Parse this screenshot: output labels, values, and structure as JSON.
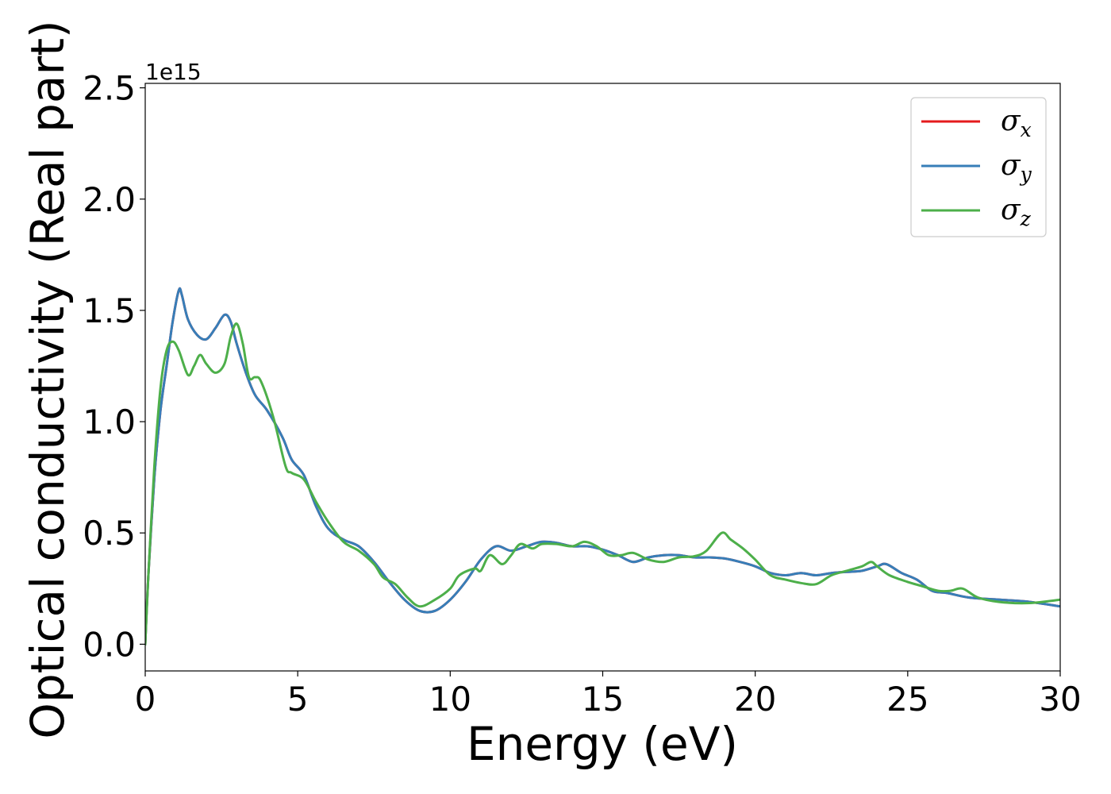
{
  "chart_data": {
    "type": "line",
    "xlabel": "Energy (eV)",
    "ylabel": "Optical conductivity (Real part)",
    "y_offset_label": "1e15",
    "xlim": [
      0,
      30
    ],
    "ylim": [
      -0.12,
      2.52
    ],
    "x_ticks": [
      0,
      5,
      10,
      15,
      20,
      25,
      30
    ],
    "x_tick_labels": [
      "0",
      "5",
      "10",
      "15",
      "20",
      "25",
      "30"
    ],
    "y_ticks": [
      0.0,
      0.5,
      1.0,
      1.5,
      2.0,
      2.5
    ],
    "y_tick_labels": [
      "0.0",
      "0.5",
      "1.0",
      "1.5",
      "2.0",
      "2.5"
    ],
    "grid": false,
    "legend_position": "top-right",
    "series": [
      {
        "name": "σ",
        "subscript": "x",
        "color": "#e41a1c",
        "points": [
          [
            0,
            0
          ],
          [
            0.1,
            0.3
          ],
          [
            0.3,
            0.75
          ],
          [
            0.5,
            1.05
          ],
          [
            0.7,
            1.25
          ],
          [
            0.9,
            1.45
          ],
          [
            1.1,
            1.59
          ],
          [
            1.2,
            1.57
          ],
          [
            1.4,
            1.46
          ],
          [
            1.7,
            1.39
          ],
          [
            2.0,
            1.37
          ],
          [
            2.3,
            1.42
          ],
          [
            2.6,
            1.48
          ],
          [
            2.8,
            1.45
          ],
          [
            3.0,
            1.35
          ],
          [
            3.3,
            1.22
          ],
          [
            3.6,
            1.12
          ],
          [
            4.0,
            1.05
          ],
          [
            4.5,
            0.93
          ],
          [
            4.8,
            0.83
          ],
          [
            5.2,
            0.76
          ],
          [
            5.6,
            0.62
          ],
          [
            6.0,
            0.52
          ],
          [
            6.5,
            0.47
          ],
          [
            7.0,
            0.44
          ],
          [
            7.5,
            0.37
          ],
          [
            8.0,
            0.28
          ],
          [
            8.5,
            0.2
          ],
          [
            9.0,
            0.15
          ],
          [
            9.5,
            0.15
          ],
          [
            10.0,
            0.2
          ],
          [
            10.5,
            0.28
          ],
          [
            11.0,
            0.38
          ],
          [
            11.5,
            0.44
          ],
          [
            12.0,
            0.42
          ],
          [
            12.5,
            0.44
          ],
          [
            13.0,
            0.46
          ],
          [
            13.5,
            0.455
          ],
          [
            14.0,
            0.44
          ],
          [
            14.5,
            0.44
          ],
          [
            15.0,
            0.425
          ],
          [
            15.5,
            0.4
          ],
          [
            16.0,
            0.37
          ],
          [
            16.5,
            0.39
          ],
          [
            17.0,
            0.4
          ],
          [
            17.5,
            0.4
          ],
          [
            18.0,
            0.39
          ],
          [
            18.5,
            0.39
          ],
          [
            19.0,
            0.385
          ],
          [
            19.5,
            0.37
          ],
          [
            20.0,
            0.35
          ],
          [
            20.5,
            0.32
          ],
          [
            21.0,
            0.31
          ],
          [
            21.5,
            0.32
          ],
          [
            22.0,
            0.31
          ],
          [
            22.5,
            0.32
          ],
          [
            23.0,
            0.325
          ],
          [
            23.5,
            0.33
          ],
          [
            24.0,
            0.35
          ],
          [
            24.3,
            0.36
          ],
          [
            24.8,
            0.32
          ],
          [
            25.3,
            0.29
          ],
          [
            25.8,
            0.24
          ],
          [
            26.3,
            0.23
          ],
          [
            27.0,
            0.21
          ],
          [
            28.0,
            0.2
          ],
          [
            29.0,
            0.19
          ],
          [
            30.0,
            0.17
          ]
        ]
      },
      {
        "name": "σ",
        "subscript": "y",
        "color": "#377eb8",
        "points": [
          [
            0,
            0
          ],
          [
            0.1,
            0.3
          ],
          [
            0.3,
            0.75
          ],
          [
            0.5,
            1.05
          ],
          [
            0.7,
            1.25
          ],
          [
            0.9,
            1.45
          ],
          [
            1.1,
            1.59
          ],
          [
            1.2,
            1.57
          ],
          [
            1.4,
            1.46
          ],
          [
            1.7,
            1.39
          ],
          [
            2.0,
            1.37
          ],
          [
            2.3,
            1.42
          ],
          [
            2.6,
            1.48
          ],
          [
            2.8,
            1.45
          ],
          [
            3.0,
            1.35
          ],
          [
            3.3,
            1.22
          ],
          [
            3.6,
            1.12
          ],
          [
            4.0,
            1.05
          ],
          [
            4.5,
            0.93
          ],
          [
            4.8,
            0.83
          ],
          [
            5.2,
            0.76
          ],
          [
            5.6,
            0.62
          ],
          [
            6.0,
            0.52
          ],
          [
            6.5,
            0.47
          ],
          [
            7.0,
            0.44
          ],
          [
            7.5,
            0.37
          ],
          [
            8.0,
            0.28
          ],
          [
            8.5,
            0.2
          ],
          [
            9.0,
            0.15
          ],
          [
            9.5,
            0.15
          ],
          [
            10.0,
            0.2
          ],
          [
            10.5,
            0.28
          ],
          [
            11.0,
            0.38
          ],
          [
            11.5,
            0.44
          ],
          [
            12.0,
            0.42
          ],
          [
            12.5,
            0.44
          ],
          [
            13.0,
            0.46
          ],
          [
            13.5,
            0.455
          ],
          [
            14.0,
            0.44
          ],
          [
            14.5,
            0.44
          ],
          [
            15.0,
            0.425
          ],
          [
            15.5,
            0.4
          ],
          [
            16.0,
            0.37
          ],
          [
            16.5,
            0.39
          ],
          [
            17.0,
            0.4
          ],
          [
            17.5,
            0.4
          ],
          [
            18.0,
            0.39
          ],
          [
            18.5,
            0.39
          ],
          [
            19.0,
            0.385
          ],
          [
            19.5,
            0.37
          ],
          [
            20.0,
            0.35
          ],
          [
            20.5,
            0.32
          ],
          [
            21.0,
            0.31
          ],
          [
            21.5,
            0.32
          ],
          [
            22.0,
            0.31
          ],
          [
            22.5,
            0.32
          ],
          [
            23.0,
            0.325
          ],
          [
            23.5,
            0.33
          ],
          [
            24.0,
            0.35
          ],
          [
            24.3,
            0.36
          ],
          [
            24.8,
            0.32
          ],
          [
            25.3,
            0.29
          ],
          [
            25.8,
            0.24
          ],
          [
            26.3,
            0.23
          ],
          [
            27.0,
            0.21
          ],
          [
            28.0,
            0.2
          ],
          [
            29.0,
            0.19
          ],
          [
            30.0,
            0.17
          ]
        ]
      },
      {
        "name": "σ",
        "subscript": "z",
        "color": "#4daf4a",
        "points": [
          [
            0,
            0
          ],
          [
            0.1,
            0.3
          ],
          [
            0.3,
            0.8
          ],
          [
            0.5,
            1.15
          ],
          [
            0.7,
            1.32
          ],
          [
            0.9,
            1.36
          ],
          [
            1.1,
            1.32
          ],
          [
            1.4,
            1.21
          ],
          [
            1.6,
            1.25
          ],
          [
            1.8,
            1.3
          ],
          [
            2.0,
            1.26
          ],
          [
            2.3,
            1.22
          ],
          [
            2.6,
            1.26
          ],
          [
            2.8,
            1.38
          ],
          [
            3.0,
            1.44
          ],
          [
            3.2,
            1.35
          ],
          [
            3.4,
            1.2
          ],
          [
            3.6,
            1.2
          ],
          [
            3.8,
            1.18
          ],
          [
            4.2,
            1.02
          ],
          [
            4.6,
            0.8
          ],
          [
            4.8,
            0.77
          ],
          [
            5.2,
            0.74
          ],
          [
            5.6,
            0.64
          ],
          [
            6.0,
            0.55
          ],
          [
            6.5,
            0.46
          ],
          [
            7.0,
            0.42
          ],
          [
            7.5,
            0.36
          ],
          [
            7.8,
            0.3
          ],
          [
            8.2,
            0.27
          ],
          [
            8.6,
            0.21
          ],
          [
            9.0,
            0.17
          ],
          [
            9.5,
            0.2
          ],
          [
            10.0,
            0.25
          ],
          [
            10.3,
            0.31
          ],
          [
            10.8,
            0.34
          ],
          [
            11.0,
            0.33
          ],
          [
            11.3,
            0.4
          ],
          [
            11.7,
            0.36
          ],
          [
            12.0,
            0.4
          ],
          [
            12.3,
            0.45
          ],
          [
            12.7,
            0.43
          ],
          [
            13.0,
            0.45
          ],
          [
            13.5,
            0.45
          ],
          [
            14.0,
            0.44
          ],
          [
            14.4,
            0.46
          ],
          [
            14.8,
            0.44
          ],
          [
            15.2,
            0.4
          ],
          [
            15.6,
            0.4
          ],
          [
            16.0,
            0.41
          ],
          [
            16.5,
            0.38
          ],
          [
            17.0,
            0.37
          ],
          [
            17.5,
            0.39
          ],
          [
            18.0,
            0.395
          ],
          [
            18.4,
            0.42
          ],
          [
            18.9,
            0.5
          ],
          [
            19.2,
            0.47
          ],
          [
            19.6,
            0.43
          ],
          [
            20.0,
            0.38
          ],
          [
            20.5,
            0.31
          ],
          [
            21.0,
            0.29
          ],
          [
            21.5,
            0.275
          ],
          [
            22.0,
            0.27
          ],
          [
            22.5,
            0.31
          ],
          [
            23.0,
            0.33
          ],
          [
            23.5,
            0.35
          ],
          [
            23.8,
            0.37
          ],
          [
            24.0,
            0.35
          ],
          [
            24.4,
            0.31
          ],
          [
            25.0,
            0.28
          ],
          [
            25.5,
            0.26
          ],
          [
            26.0,
            0.24
          ],
          [
            26.4,
            0.24
          ],
          [
            26.8,
            0.25
          ],
          [
            27.3,
            0.21
          ],
          [
            28.0,
            0.19
          ],
          [
            29.0,
            0.185
          ],
          [
            30.0,
            0.2
          ]
        ]
      }
    ]
  }
}
